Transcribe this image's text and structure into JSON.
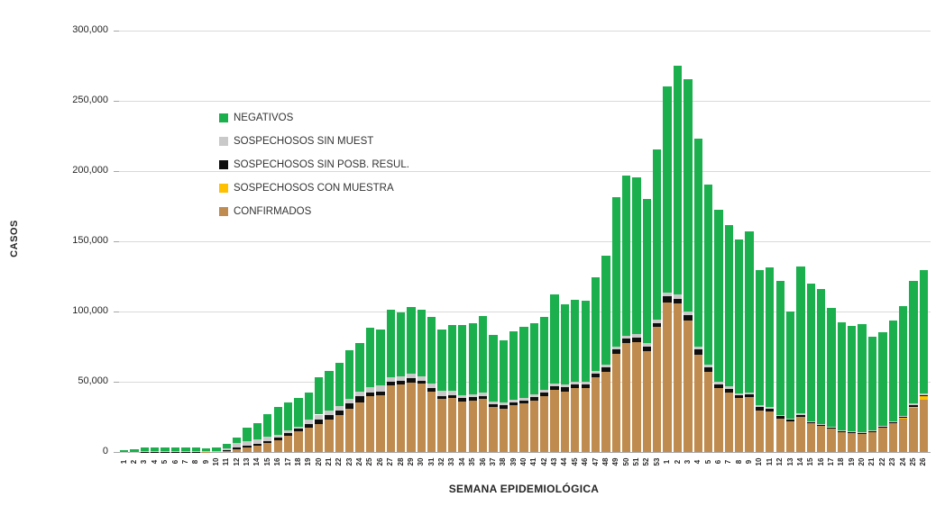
{
  "y_axis": {
    "label": "CASOS",
    "tick_labels": [
      "0",
      "50,000",
      "100,000",
      "150,000",
      "200,000",
      "250,000",
      "300,000"
    ],
    "tick_values": [
      0,
      50000,
      100000,
      150000,
      200000,
      250000,
      300000
    ]
  },
  "x_axis": {
    "label": "SEMANA EPIDEMIOLÓGICA"
  },
  "legend": [
    {
      "label": "NEGATIVOS",
      "color": "#1BAF4D"
    },
    {
      "label": "SOSPECHOSOS SIN MUEST",
      "color": "#C9C9C9"
    },
    {
      "label": "SOSPECHOSOS SIN POSB. RESUL.",
      "color": "#0F0F0F"
    },
    {
      "label": "SOSPECHOSOS CON MUESTRA",
      "color": "#FFC000"
    },
    {
      "label": "CONFIRMADOS",
      "color": "#BF8B4E"
    }
  ],
  "chart_data": {
    "type": "bar",
    "stacked": true,
    "title": "",
    "xlabel": "SEMANA EPIDEMIOLÓGICA",
    "ylabel": "CASOS",
    "ylim": [
      0,
      300000
    ],
    "grid": true,
    "legend_position": "inside-upper-left",
    "categories": [
      "1",
      "2",
      "3",
      "4",
      "5",
      "6",
      "7",
      "8",
      "9",
      "10",
      "11",
      "12",
      "13",
      "14",
      "15",
      "16",
      "17",
      "18",
      "19",
      "20",
      "21",
      "22",
      "23",
      "24",
      "25",
      "26",
      "27",
      "28",
      "29",
      "30",
      "31",
      "32",
      "33",
      "34",
      "35",
      "36",
      "37",
      "38",
      "39",
      "40",
      "41",
      "42",
      "43",
      "44",
      "45",
      "46",
      "47",
      "48",
      "49",
      "50",
      "51",
      "52",
      "53",
      "1",
      "2",
      "3",
      "4",
      "5",
      "6",
      "7",
      "8",
      "9",
      "10",
      "11",
      "12",
      "13",
      "14",
      "15",
      "16",
      "17",
      "18",
      "19",
      "20",
      "21",
      "22",
      "23",
      "24",
      "25",
      "26"
    ],
    "series": [
      {
        "name": "CONFIRMADOS",
        "color": "#BF8B4E",
        "values": [
          50,
          100,
          150,
          200,
          200,
          200,
          250,
          250,
          300,
          350,
          800,
          2100,
          3200,
          4500,
          6200,
          8300,
          11500,
          14500,
          17500,
          20100,
          23100,
          26100,
          30800,
          35400,
          39900,
          40600,
          47400,
          47800,
          49600,
          48500,
          42700,
          37800,
          38200,
          36100,
          36700,
          37800,
          31800,
          31000,
          33100,
          34600,
          36700,
          39900,
          44200,
          43100,
          45300,
          45300,
          53200,
          57100,
          69900,
          77300,
          78400,
          72000,
          88900,
          106500,
          105800,
          93800,
          69400,
          57100,
          45300,
          42500,
          38200,
          38800,
          29700,
          28800,
          24000,
          21800,
          25000,
          20300,
          18600,
          16900,
          14300,
          13700,
          13200,
          14300,
          17500,
          20700,
          23900,
          31400,
          37400
        ]
      },
      {
        "name": "SOSPECHOSOS CON MUESTRA",
        "color": "#FFC000",
        "values": [
          0,
          0,
          0,
          0,
          0,
          0,
          0,
          0,
          0,
          0,
          0,
          0,
          0,
          0,
          0,
          0,
          0,
          0,
          0,
          0,
          0,
          0,
          0,
          0,
          0,
          0,
          0,
          0,
          0,
          0,
          0,
          0,
          0,
          0,
          0,
          0,
          0,
          0,
          0,
          0,
          0,
          0,
          0,
          0,
          0,
          0,
          0,
          0,
          0,
          0,
          0,
          0,
          0,
          0,
          0,
          0,
          0,
          0,
          0,
          0,
          0,
          0,
          0,
          0,
          0,
          0,
          0,
          0,
          0,
          0,
          0,
          0,
          0,
          0,
          0,
          0,
          200,
          500,
          2600
        ]
      },
      {
        "name": "SOSPECHOSOS SIN POSB. RESUL.",
        "color": "#0F0F0F",
        "values": [
          0,
          50,
          50,
          50,
          50,
          50,
          50,
          50,
          50,
          100,
          200,
          1100,
          1300,
          1300,
          1700,
          1700,
          2000,
          1900,
          2400,
          3000,
          3200,
          3400,
          3800,
          4300,
          2600,
          2600,
          2600,
          2800,
          2700,
          2100,
          2600,
          2100,
          2200,
          2400,
          2100,
          2100,
          2400,
          2300,
          2200,
          2100,
          2400,
          2600,
          2800,
          2800,
          2800,
          3000,
          2800,
          2900,
          3200,
          3200,
          3200,
          3200,
          3000,
          4500,
          2900,
          3800,
          3700,
          3200,
          2800,
          2600,
          2200,
          2200,
          2100,
          2200,
          1400,
          1000,
          1300,
          800,
          700,
          600,
          500,
          500,
          500,
          600,
          700,
          800,
          900,
          1700,
          400
        ]
      },
      {
        "name": "SOSPECHOSOS SIN MUEST",
        "color": "#C9C9C9",
        "values": [
          100,
          150,
          200,
          250,
          250,
          250,
          250,
          300,
          300,
          400,
          1500,
          3000,
          3400,
          3400,
          3200,
          2200,
          1600,
          1500,
          3300,
          3500,
          3500,
          3500,
          3500,
          3500,
          3800,
          4400,
          3200,
          3300,
          3400,
          3400,
          3500,
          3500,
          3000,
          2100,
          2200,
          2200,
          1700,
          1700,
          1600,
          1800,
          1700,
          1700,
          1900,
          1900,
          1900,
          1900,
          1900,
          1900,
          2100,
          2200,
          2100,
          2100,
          2100,
          2500,
          3500,
          2200,
          2100,
          2100,
          1700,
          1700,
          1300,
          1500,
          1300,
          1200,
          1000,
          800,
          1000,
          700,
          600,
          500,
          500,
          400,
          400,
          500,
          500,
          600,
          800,
          1000,
          1300
        ]
      },
      {
        "name": "NEGATIVOS",
        "color": "#1BAF4D",
        "values": [
          850,
          1700,
          2600,
          2700,
          2800,
          2700,
          2650,
          2600,
          1850,
          2350,
          3300,
          3800,
          9100,
          11100,
          15600,
          19600,
          20200,
          20300,
          19300,
          26400,
          28200,
          30700,
          34400,
          34100,
          42000,
          39300,
          48300,
          45600,
          47500,
          47000,
          47200,
          44100,
          47200,
          50000,
          50600,
          54400,
          47500,
          44500,
          49000,
          50600,
          50800,
          51700,
          63600,
          57300,
          58300,
          57500,
          66500,
          78100,
          106400,
          113900,
          111600,
          103000,
          121100,
          146900,
          162800,
          165600,
          147900,
          128200,
          122600,
          114900,
          109800,
          114600,
          96600,
          99200,
          95100,
          76600,
          105000,
          98300,
          95900,
          84300,
          77000,
          74900,
          76700,
          66700,
          66600,
          71200,
          77800,
          86900,
          87500
        ]
      }
    ]
  }
}
